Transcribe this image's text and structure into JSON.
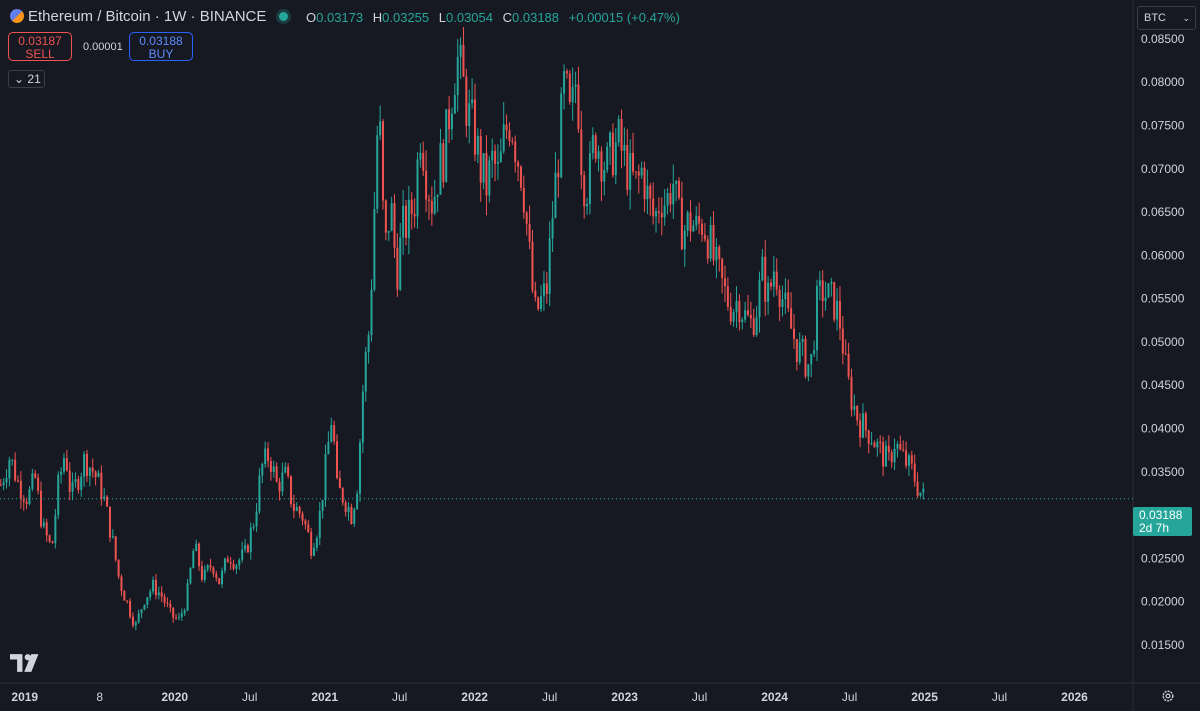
{
  "header": {
    "symbol": "Ethereum / Bitcoin · 1W · BINANCE",
    "ohlc": [
      {
        "label": "O",
        "value": "0.03173"
      },
      {
        "label": "H",
        "value": "0.03255"
      },
      {
        "label": "L",
        "value": "0.03054"
      },
      {
        "label": "C",
        "value": "0.03188"
      }
    ],
    "change": "+0.00015 (+0.47%)"
  },
  "trade": {
    "sell_price": "0.03187",
    "sell_label": "SELL",
    "spread": "0.00001",
    "buy_price": "0.03188",
    "buy_label": "BUY"
  },
  "indicator_toggle": "21",
  "currency": "BTC",
  "last_price": {
    "value": "0.03188",
    "countdown": "2d 7h"
  },
  "colors": {
    "up": "#26a69a",
    "down": "#ef5350",
    "background": "#161822",
    "grid_text": "#d1d4dc"
  },
  "icons": {
    "logo": "tradingview-logo-icon",
    "settings": "gear-icon"
  },
  "chart_data": {
    "type": "candlestick",
    "title": "",
    "xlabel": "",
    "ylabel": "",
    "ylim": [
      0.0125,
      0.088
    ],
    "x_tick_labels": [
      {
        "t": 2019.0,
        "label": "2019"
      },
      {
        "t": 2019.5,
        "label": "8"
      },
      {
        "t": 2020.0,
        "label": "2020"
      },
      {
        "t": 2020.5,
        "label": "Jul"
      },
      {
        "t": 2021.0,
        "label": "2021"
      },
      {
        "t": 2021.5,
        "label": "Jul"
      },
      {
        "t": 2022.0,
        "label": "2022"
      },
      {
        "t": 2022.5,
        "label": "Jul"
      },
      {
        "t": 2023.0,
        "label": "2023"
      },
      {
        "t": 2023.5,
        "label": "Jul"
      },
      {
        "t": 2024.0,
        "label": "2024"
      },
      {
        "t": 2024.5,
        "label": "Jul"
      },
      {
        "t": 2025.0,
        "label": "2025"
      },
      {
        "t": 2025.5,
        "label": "Jul"
      },
      {
        "t": 2026.0,
        "label": "2026"
      }
    ],
    "y_tick_labels": [
      "0.08500",
      "0.08000",
      "0.07500",
      "0.07000",
      "0.06500",
      "0.06000",
      "0.05500",
      "0.05000",
      "0.04500",
      "0.04000",
      "0.03500",
      "0.02500",
      "0.02000",
      "0.01500"
    ],
    "y_ticks": [
      0.085,
      0.08,
      0.075,
      0.07,
      0.065,
      0.06,
      0.055,
      0.05,
      0.045,
      0.04,
      0.035,
      0.025,
      0.02,
      0.015
    ],
    "last_price": 0.03188,
    "close_series": [
      [
        2018.84,
        0.0335
      ],
      [
        2018.9,
        0.0368
      ],
      [
        2018.96,
        0.0335
      ],
      [
        2019.02,
        0.032
      ],
      [
        2019.07,
        0.0342
      ],
      [
        2019.12,
        0.0285
      ],
      [
        2019.18,
        0.026
      ],
      [
        2019.22,
        0.033
      ],
      [
        2019.27,
        0.0375
      ],
      [
        2019.31,
        0.032
      ],
      [
        2019.35,
        0.034
      ],
      [
        2019.4,
        0.0365
      ],
      [
        2019.46,
        0.035
      ],
      [
        2019.52,
        0.0325
      ],
      [
        2019.58,
        0.0275
      ],
      [
        2019.63,
        0.0225
      ],
      [
        2019.69,
        0.0195
      ],
      [
        2019.74,
        0.0172
      ],
      [
        2019.8,
        0.0205
      ],
      [
        2019.86,
        0.0218
      ],
      [
        2019.92,
        0.0205
      ],
      [
        2019.97,
        0.0185
      ],
      [
        2020.03,
        0.0178
      ],
      [
        2020.08,
        0.0205
      ],
      [
        2020.13,
        0.0265
      ],
      [
        2020.19,
        0.0225
      ],
      [
        2020.25,
        0.0245
      ],
      [
        2020.3,
        0.0222
      ],
      [
        2020.36,
        0.0255
      ],
      [
        2020.41,
        0.0245
      ],
      [
        2020.47,
        0.0255
      ],
      [
        2020.53,
        0.0295
      ],
      [
        2020.58,
        0.0355
      ],
      [
        2020.63,
        0.037
      ],
      [
        2020.68,
        0.0335
      ],
      [
        2020.74,
        0.0345
      ],
      [
        2020.79,
        0.031
      ],
      [
        2020.85,
        0.03
      ],
      [
        2020.91,
        0.0265
      ],
      [
        2020.96,
        0.029
      ],
      [
        2021.02,
        0.0375
      ],
      [
        2021.05,
        0.042
      ],
      [
        2021.08,
        0.033
      ],
      [
        2021.13,
        0.032
      ],
      [
        2021.18,
        0.03
      ],
      [
        2021.22,
        0.034
      ],
      [
        2021.26,
        0.046
      ],
      [
        2021.3,
        0.052
      ],
      [
        2021.33,
        0.065
      ],
      [
        2021.36,
        0.078
      ],
      [
        2021.4,
        0.06
      ],
      [
        2021.44,
        0.066
      ],
      [
        2021.48,
        0.058
      ],
      [
        2021.52,
        0.063
      ],
      [
        2021.56,
        0.064
      ],
      [
        2021.6,
        0.0665
      ],
      [
        2021.64,
        0.075
      ],
      [
        2021.68,
        0.069
      ],
      [
        2021.72,
        0.066
      ],
      [
        2021.76,
        0.07
      ],
      [
        2021.8,
        0.072
      ],
      [
        2021.84,
        0.078
      ],
      [
        2021.88,
        0.083
      ],
      [
        2021.92,
        0.08
      ],
      [
        2021.96,
        0.076
      ],
      [
        2022.0,
        0.074
      ],
      [
        2022.04,
        0.07
      ],
      [
        2022.08,
        0.068
      ],
      [
        2022.12,
        0.071
      ],
      [
        2022.16,
        0.069
      ],
      [
        2022.2,
        0.074
      ],
      [
        2022.24,
        0.076
      ],
      [
        2022.28,
        0.072
      ],
      [
        2022.32,
        0.069
      ],
      [
        2022.36,
        0.061
      ],
      [
        2022.4,
        0.053
      ],
      [
        2022.44,
        0.0545
      ],
      [
        2022.48,
        0.056
      ],
      [
        2022.52,
        0.065
      ],
      [
        2022.56,
        0.072
      ],
      [
        2022.6,
        0.08
      ],
      [
        2022.64,
        0.075
      ],
      [
        2022.68,
        0.081
      ],
      [
        2022.72,
        0.069
      ],
      [
        2022.76,
        0.068
      ],
      [
        2022.8,
        0.074
      ],
      [
        2022.84,
        0.072
      ],
      [
        2022.88,
        0.07
      ],
      [
        2022.92,
        0.072
      ],
      [
        2022.96,
        0.073
      ],
      [
        2023.0,
        0.071
      ],
      [
        2023.04,
        0.069
      ],
      [
        2023.08,
        0.068
      ],
      [
        2023.12,
        0.07
      ],
      [
        2023.16,
        0.066
      ],
      [
        2023.2,
        0.064
      ],
      [
        2023.24,
        0.067
      ],
      [
        2023.28,
        0.066
      ],
      [
        2023.32,
        0.069
      ],
      [
        2023.36,
        0.064
      ],
      [
        2023.4,
        0.063
      ],
      [
        2023.44,
        0.064
      ],
      [
        2023.48,
        0.063
      ],
      [
        2023.52,
        0.064
      ],
      [
        2023.56,
        0.062
      ],
      [
        2023.6,
        0.059
      ],
      [
        2023.64,
        0.057
      ],
      [
        2023.68,
        0.055
      ],
      [
        2023.72,
        0.054
      ],
      [
        2023.76,
        0.055
      ],
      [
        2023.8,
        0.053
      ],
      [
        2023.84,
        0.052
      ],
      [
        2023.88,
        0.054
      ],
      [
        2023.92,
        0.058
      ],
      [
        2023.96,
        0.055
      ],
      [
        2024.0,
        0.059
      ],
      [
        2024.04,
        0.056
      ],
      [
        2024.08,
        0.053
      ],
      [
        2024.12,
        0.051
      ],
      [
        2024.16,
        0.049
      ],
      [
        2024.2,
        0.048
      ],
      [
        2024.24,
        0.047
      ],
      [
        2024.28,
        0.054
      ],
      [
        2024.32,
        0.056
      ],
      [
        2024.36,
        0.055
      ],
      [
        2024.4,
        0.0545
      ],
      [
        2024.44,
        0.052
      ],
      [
        2024.48,
        0.046
      ],
      [
        2024.52,
        0.043
      ],
      [
        2024.56,
        0.041
      ],
      [
        2024.6,
        0.04
      ],
      [
        2024.64,
        0.0395
      ],
      [
        2024.68,
        0.038
      ],
      [
        2024.72,
        0.037
      ],
      [
        2024.76,
        0.036
      ],
      [
        2024.8,
        0.0385
      ],
      [
        2024.84,
        0.037
      ],
      [
        2024.88,
        0.036
      ],
      [
        2024.92,
        0.035
      ],
      [
        2024.96,
        0.033
      ],
      [
        2025.0,
        0.0319
      ]
    ]
  }
}
